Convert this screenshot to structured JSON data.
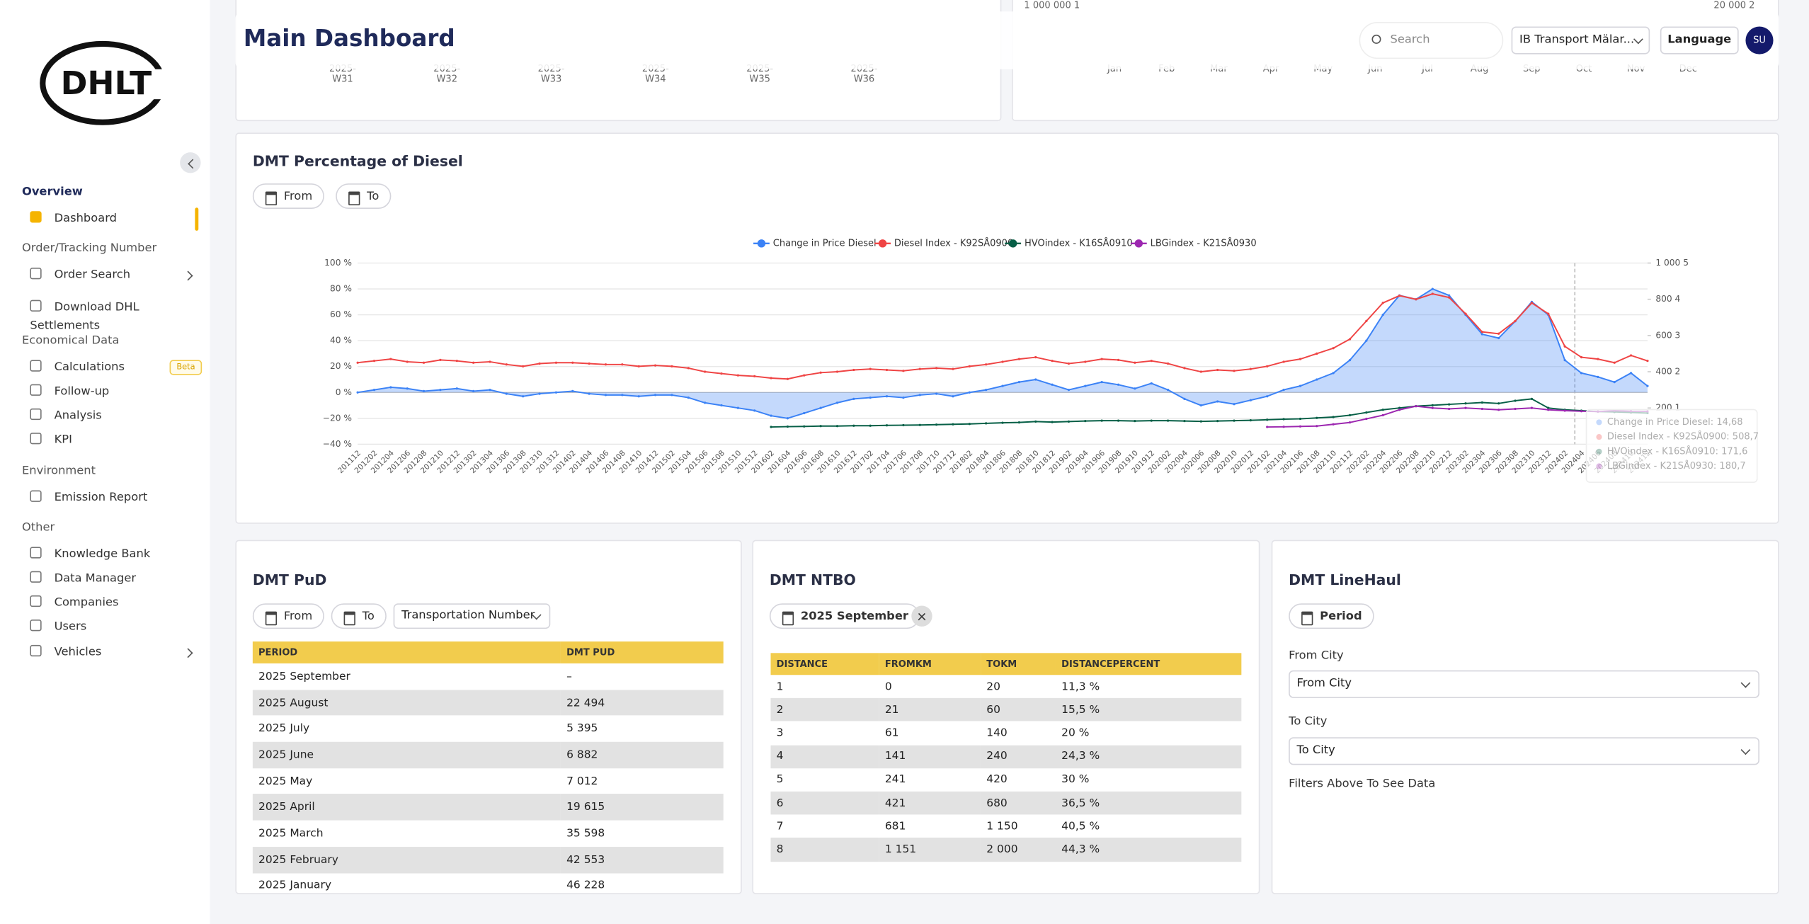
{
  "logo": "DHLT",
  "header": {
    "title": "Main Dashboard",
    "search": "Search",
    "company": "IB Transport Mälar...",
    "language": "Language",
    "avatar": "SU"
  },
  "sidebar": {
    "sections": [
      {
        "title": "Overview",
        "items": [
          {
            "label": "Dashboard"
          }
        ]
      },
      {
        "title": "Order/Tracking Number",
        "items": [
          {
            "label": "Order Search"
          },
          {
            "label": "Download DHL Settlements"
          }
        ]
      },
      {
        "title": "Economical Data",
        "items": [
          {
            "label": "Calculations",
            "badge": "Beta"
          },
          {
            "label": "Follow-up"
          },
          {
            "label": "Analysis"
          },
          {
            "label": "KPI"
          }
        ]
      },
      {
        "title": "Environment",
        "items": [
          {
            "label": "Emission Report"
          }
        ]
      },
      {
        "title": "Other",
        "items": [
          {
            "label": "Knowledge Bank"
          },
          {
            "label": "Data Manager"
          },
          {
            "label": "Companies"
          },
          {
            "label": "Users"
          },
          {
            "label": "Vehicles"
          }
        ]
      }
    ]
  },
  "top_charts": [
    {
      "categories": [
        "2025-W31",
        "2025-W32",
        "2025-W33",
        "2025-W34",
        "2025-W35",
        "2025-W36"
      ]
    },
    {
      "categories": [
        "Jan",
        "Feb",
        "Mar",
        "Apr",
        "May",
        "Jun",
        "Jul",
        "Aug",
        "Sep",
        "Oct",
        "Nov",
        "Dec"
      ],
      "axis_labels": [
        "1 000 000 1",
        "20 000 2"
      ]
    }
  ],
  "diesel_filters": [
    "From",
    "To"
  ],
  "chart_data": {
    "type": "line",
    "title": "DMT Percentage of Diesel",
    "categories": [
      "201112",
      "201202",
      "201204",
      "201206",
      "201208",
      "201210",
      "201212",
      "201302",
      "201304",
      "201306",
      "201308",
      "201310",
      "201312",
      "201402",
      "201404",
      "201406",
      "201408",
      "201410",
      "201412",
      "201502",
      "201504",
      "201506",
      "201508",
      "201510",
      "201512",
      "201602",
      "201604",
      "201606",
      "201608",
      "201610",
      "201612",
      "201702",
      "201704",
      "201706",
      "201708",
      "201710",
      "201712",
      "201802",
      "201804",
      "201806",
      "201808",
      "201810",
      "201812",
      "201902",
      "201904",
      "201906",
      "201908",
      "201910",
      "201912",
      "202002",
      "202004",
      "202006",
      "202008",
      "202010",
      "202012",
      "202102",
      "202104",
      "202106",
      "202108",
      "202110",
      "202112",
      "202202",
      "202204",
      "202206",
      "202208",
      "202210",
      "202212",
      "202302",
      "202304",
      "202306",
      "202308",
      "202310",
      "202312",
      "202402",
      "202404",
      "202406",
      "202408",
      "202410",
      "202412"
    ],
    "series": [
      {
        "name": "Change in Price Diesel",
        "color": "#3b82f6",
        "axis": "y",
        "values": [
          0,
          2,
          4,
          3,
          1,
          2,
          3,
          1,
          2,
          -1,
          -3,
          -1,
          0,
          1,
          -1,
          -2,
          -2,
          -3,
          -2,
          -2,
          -4,
          -8,
          -10,
          -12,
          -14,
          -18,
          -20,
          -16,
          -12,
          -8,
          -5,
          -4,
          -3,
          -4,
          -2,
          -1,
          -3,
          0,
          2,
          5,
          8,
          10,
          6,
          2,
          5,
          8,
          6,
          3,
          7,
          2,
          -5,
          -10,
          -7,
          -9,
          -6,
          -3,
          2,
          5,
          10,
          15,
          25,
          40,
          60,
          75,
          72,
          80,
          75,
          60,
          45,
          42,
          55,
          70,
          60,
          25,
          15,
          12,
          8,
          15,
          5
        ]
      },
      {
        "name": "Diesel Index - K92SÅ0900",
        "color": "#ef4444",
        "axis": "y2",
        "values": [
          450,
          460,
          470,
          455,
          450,
          465,
          460,
          450,
          455,
          440,
          430,
          445,
          450,
          450,
          445,
          440,
          440,
          430,
          435,
          430,
          420,
          400,
          390,
          380,
          375,
          365,
          360,
          380,
          395,
          400,
          410,
          415,
          410,
          405,
          415,
          420,
          415,
          430,
          440,
          455,
          470,
          480,
          460,
          445,
          455,
          470,
          465,
          450,
          460,
          445,
          420,
          400,
          410,
          405,
          415,
          430,
          455,
          470,
          500,
          530,
          580,
          680,
          780,
          820,
          800,
          830,
          810,
          720,
          620,
          610,
          680,
          780,
          720,
          540,
          480,
          470,
          450,
          490,
          460
        ]
      },
      {
        "name": "HVOindex - K16SÅ0910",
        "color": "#065f46",
        "axis": "y2",
        "values": [
          null,
          null,
          null,
          null,
          null,
          null,
          null,
          null,
          null,
          null,
          null,
          null,
          null,
          null,
          null,
          null,
          null,
          null,
          null,
          null,
          null,
          null,
          null,
          null,
          null,
          95,
          97,
          98,
          100,
          100,
          102,
          102,
          104,
          105,
          106,
          108,
          110,
          112,
          115,
          118,
          120,
          125,
          122,
          125,
          128,
          130,
          130,
          128,
          130,
          130,
          128,
          126,
          128,
          130,
          132,
          135,
          138,
          140,
          145,
          150,
          160,
          175,
          190,
          200,
          210,
          215,
          220,
          225,
          230,
          225,
          240,
          250,
          200,
          190,
          185,
          180,
          178,
          175,
          172
        ]
      },
      {
        "name": "LBGindex - K21SÅ0930",
        "color": "#9c27b0",
        "axis": "y2",
        "values": [
          null,
          null,
          null,
          null,
          null,
          null,
          null,
          null,
          null,
          null,
          null,
          null,
          null,
          null,
          null,
          null,
          null,
          null,
          null,
          null,
          null,
          null,
          null,
          null,
          null,
          null,
          null,
          null,
          null,
          null,
          null,
          null,
          null,
          null,
          null,
          null,
          null,
          null,
          null,
          null,
          null,
          null,
          null,
          null,
          null,
          null,
          null,
          null,
          null,
          null,
          null,
          null,
          null,
          null,
          null,
          95,
          96,
          98,
          100,
          110,
          120,
          140,
          160,
          190,
          210,
          200,
          195,
          200,
          195,
          190,
          195,
          200,
          190,
          185,
          182,
          180,
          185,
          182,
          181
        ]
      }
    ],
    "ylim": [
      -40,
      100
    ],
    "yticks": [
      {
        "value": 100,
        "label": "100 %"
      },
      {
        "value": 80,
        "label": "80 %"
      },
      {
        "value": 60,
        "label": "60 %"
      },
      {
        "value": 40,
        "label": "40 %"
      },
      {
        "value": 20,
        "label": "20 %"
      },
      {
        "value": 0,
        "label": "0 %"
      },
      {
        "value": -20,
        "label": "−20 %"
      },
      {
        "value": -40,
        "label": "−40 %"
      }
    ],
    "y2lim": [
      0,
      1000
    ],
    "y2ticks": [
      {
        "value": 1000,
        "label": "1 000 5"
      },
      {
        "value": 800,
        "label": "800 4"
      },
      {
        "value": 600,
        "label": "600 3"
      },
      {
        "value": 400,
        "label": "400 2"
      },
      {
        "value": 200,
        "label": "200 1"
      }
    ],
    "grid": true,
    "legend": "top",
    "tooltip": [
      "Change in Price Diesel: 14,68",
      "Diesel Index - K92SÅ0900: 508,7",
      "HVOindex - K16SÅ0910: 171,6",
      "LBGindex - K21SÅ0930: 180,7"
    ]
  },
  "pud": {
    "title": "DMT PuD",
    "filters": [
      "From",
      "To"
    ],
    "select": "Transportation Number",
    "columns": [
      "PERIOD",
      "DMT PUD"
    ],
    "rows": [
      [
        "2025 September",
        "–"
      ],
      [
        "2025 August",
        "22 494"
      ],
      [
        "2025 July",
        "5 395"
      ],
      [
        "2025 June",
        "6 882"
      ],
      [
        "2025 May",
        "7 012"
      ],
      [
        "2025 April",
        "19 615"
      ],
      [
        "2025 March",
        "35 598"
      ],
      [
        "2025 February",
        "42 553"
      ],
      [
        "2025 January",
        "46 228"
      ]
    ]
  },
  "ntbo": {
    "title": "DMT NTBO",
    "filter": "2025 September",
    "columns": [
      "DISTANCE",
      "FROMKM",
      "TOKM",
      "DISTANCEPERCENT"
    ],
    "rows": [
      [
        "1",
        "0",
        "20",
        "11,3 %"
      ],
      [
        "2",
        "21",
        "60",
        "15,5 %"
      ],
      [
        "3",
        "61",
        "140",
        "20 %"
      ],
      [
        "4",
        "141",
        "240",
        "24,3 %"
      ],
      [
        "5",
        "241",
        "420",
        "30 %"
      ],
      [
        "6",
        "421",
        "680",
        "36,5 %"
      ],
      [
        "7",
        "681",
        "1 150",
        "40,5 %"
      ],
      [
        "8",
        "1 151",
        "2 000",
        "44,3 %"
      ]
    ]
  },
  "linehaul": {
    "title": "DMT LineHaul",
    "filter": "Period",
    "from_label": "From City",
    "from_placeholder": "From City",
    "to_label": "To City",
    "to_placeholder": "To City",
    "note": "Filters Above To See Data"
  }
}
